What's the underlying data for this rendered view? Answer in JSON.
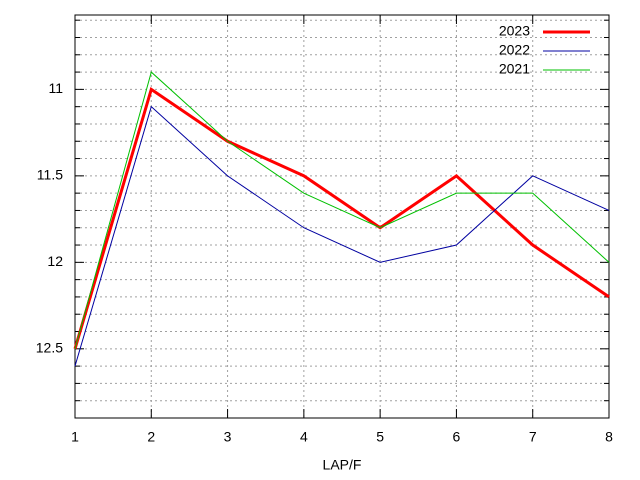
{
  "chart_data": {
    "type": "line",
    "xlabel": "LAP/F",
    "x": [
      1,
      2,
      3,
      4,
      5,
      6,
      7,
      8
    ],
    "xlim": [
      1,
      8
    ],
    "xticks": [
      1,
      2,
      3,
      4,
      5,
      6,
      7,
      8
    ],
    "ylim": [
      10.57,
      12.9
    ],
    "y_inverted": true,
    "yticks": [
      11,
      11.5,
      12,
      12.5
    ],
    "y_minor_ticks": [
      10.6,
      10.7,
      10.8,
      10.9,
      11.1,
      11.2,
      11.3,
      11.4,
      11.6,
      11.7,
      11.8,
      11.9,
      12.1,
      12.2,
      12.3,
      12.4,
      12.6,
      12.7,
      12.8,
      12.9
    ],
    "grid": true,
    "legend": "top-right",
    "series": [
      {
        "name": "2023",
        "color": "#ff0000",
        "width": 3,
        "values": [
          12.5,
          11.0,
          11.3,
          11.5,
          11.8,
          11.5,
          11.9,
          12.2
        ]
      },
      {
        "name": "2022",
        "color": "#0000a0",
        "width": 1,
        "values": [
          12.6,
          11.1,
          11.5,
          11.8,
          12.0,
          11.9,
          11.5,
          11.7
        ]
      },
      {
        "name": "2021",
        "color": "#00c000",
        "width": 1,
        "values": [
          12.5,
          10.9,
          11.3,
          11.6,
          11.8,
          11.6,
          11.6,
          12.0
        ]
      }
    ]
  }
}
